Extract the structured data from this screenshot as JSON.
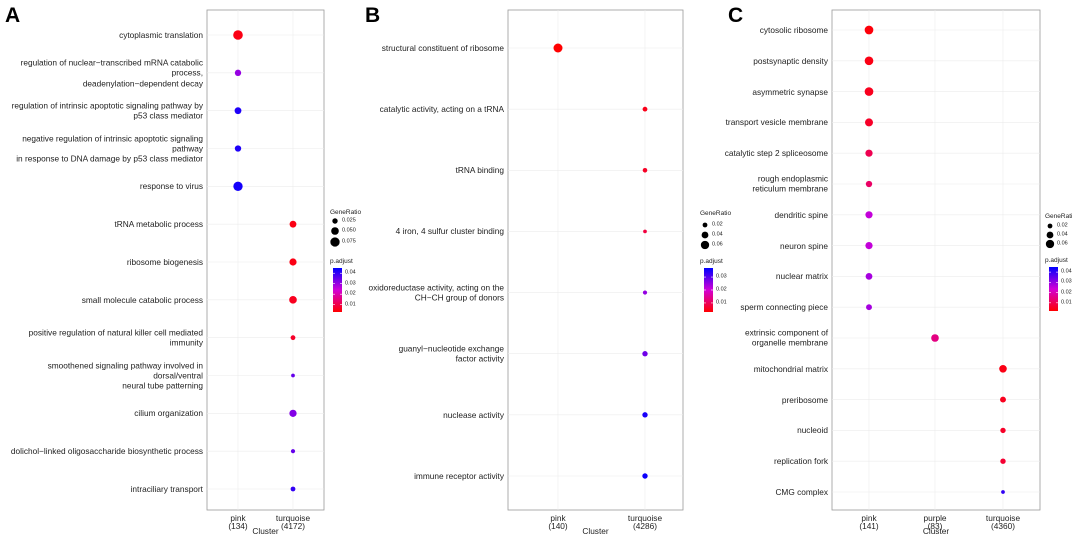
{
  "chart_data": [
    {
      "type": "dot",
      "panel_label": "A",
      "xlabel": "Cluster",
      "clusters": [
        "pink",
        "turquoise"
      ],
      "cluster_sizes": [
        "(134)",
        "(4172)"
      ],
      "categories": [
        "cytoplasmic translation",
        "regulation of nuclear−transcribed mRNA catabolic process,\ndeadenylation−dependent decay",
        "regulation of intrinsic apoptotic signaling pathway by\np53 class mediator",
        "negative regulation of intrinsic apoptotic signaling pathway\nin response to DNA damage by p53 class mediator",
        "response to virus",
        "tRNA metabolic process",
        "ribosome biogenesis",
        "small molecule catabolic process",
        "positive regulation of natural killer cell mediated immunity",
        "smoothened signaling pathway involved in dorsal/ventral\nneural tube patterning",
        "cilium organization",
        "dolichol−linked oligosaccharide biosynthetic process",
        "intraciliary transport"
      ],
      "cluster_of": [
        "pink",
        "pink",
        "pink",
        "pink",
        "pink",
        "turquoise",
        "turquoise",
        "turquoise",
        "turquoise",
        "turquoise",
        "turquoise",
        "turquoise",
        "turquoise"
      ],
      "gene_ratio": [
        0.08,
        0.035,
        0.04,
        0.035,
        0.075,
        0.04,
        0.045,
        0.05,
        0.02,
        0.012,
        0.045,
        0.015,
        0.02
      ],
      "p_adjust": [
        0.005,
        0.03,
        0.042,
        0.042,
        0.043,
        0.005,
        0.005,
        0.006,
        0.007,
        0.035,
        0.032,
        0.035,
        0.04
      ],
      "size_legend": {
        "title": "GeneRatio",
        "ticks": [
          0.025,
          {
            "value": 0.05,
            "label": "0.050"
          },
          0.075
        ]
      },
      "color_legend": {
        "title": "p.adjust",
        "lim": [
          0.003,
          0.045
        ],
        "ticks": [
          0.04,
          0.03,
          0.02,
          0.01
        ],
        "colors": [
          "#ff0000",
          "#d200d6",
          "#0000ff"
        ]
      },
      "grid": true
    },
    {
      "type": "dot",
      "panel_label": "B",
      "xlabel": "Cluster",
      "clusters": [
        "pink",
        "turquoise"
      ],
      "cluster_sizes": [
        "(140)",
        "(4286)"
      ],
      "categories": [
        "structural constituent of ribosome",
        "catalytic activity, acting on a tRNA",
        "tRNA binding",
        "4 iron, 4 sulfur cluster binding",
        "oxidoreductase activity, acting on the\nCH−CH group of donors",
        "guanyl−nucleotide exchange\nfactor activity",
        "nuclease activity",
        "immune receptor activity"
      ],
      "cluster_of": [
        "pink",
        "turquoise",
        "turquoise",
        "turquoise",
        "turquoise",
        "turquoise",
        "turquoise",
        "turquoise"
      ],
      "gene_ratio": [
        0.07,
        0.02,
        0.018,
        0.012,
        0.015,
        0.025,
        0.025,
        0.025
      ],
      "p_adjust": [
        0.003,
        0.005,
        0.006,
        0.008,
        0.025,
        0.028,
        0.035,
        0.036
      ],
      "size_legend": {
        "title": "GeneRatio",
        "ticks": [
          0.02,
          0.04,
          0.06
        ]
      },
      "color_legend": {
        "title": "p.adjust",
        "lim": [
          0.003,
          0.037
        ],
        "ticks": [
          0.03,
          0.02,
          0.01
        ],
        "colors": [
          "#ff0000",
          "#d200d6",
          "#0000ff"
        ]
      },
      "grid": true
    },
    {
      "type": "dot",
      "panel_label": "C",
      "xlabel": "Cluster",
      "clusters": [
        "pink",
        "purple",
        "turquoise"
      ],
      "cluster_sizes": [
        "(141)",
        "(83)",
        "(4360)"
      ],
      "categories": [
        "cytosolic ribosome",
        "postsynaptic density",
        "asymmetric synapse",
        "transport vesicle membrane",
        "catalytic step 2 spliceosome",
        "rough endoplasmic\nreticulum membrane",
        "dendritic spine",
        "neuron spine",
        "nuclear matrix",
        "sperm connecting piece",
        "extrinsic component of\norganelle membrane",
        "mitochondrial matrix",
        "preribosome",
        "nucleoid",
        "replication fork",
        "CMG complex"
      ],
      "cluster_of": [
        "pink",
        "pink",
        "pink",
        "pink",
        "pink",
        "pink",
        "pink",
        "pink",
        "pink",
        "pink",
        "purple",
        "turquoise",
        "turquoise",
        "turquoise",
        "turquoise",
        "turquoise"
      ],
      "gene_ratio": [
        0.065,
        0.065,
        0.065,
        0.055,
        0.045,
        0.035,
        0.045,
        0.045,
        0.04,
        0.03,
        0.05,
        0.05,
        0.03,
        0.025,
        0.025,
        0.012
      ],
      "p_adjust": [
        0.003,
        0.004,
        0.005,
        0.006,
        0.01,
        0.012,
        0.025,
        0.025,
        0.028,
        0.028,
        0.015,
        0.004,
        0.005,
        0.006,
        0.007,
        0.04
      ],
      "size_legend": {
        "title": "GeneRatio",
        "ticks": [
          0.02,
          0.04,
          0.06
        ]
      },
      "color_legend": {
        "title": "p.adjust",
        "lim": [
          0.002,
          0.045
        ],
        "ticks": [
          0.04,
          0.03,
          0.02,
          0.01
        ],
        "colors": [
          "#ff0000",
          "#d200d6",
          "#0000ff"
        ]
      },
      "grid": true
    }
  ]
}
